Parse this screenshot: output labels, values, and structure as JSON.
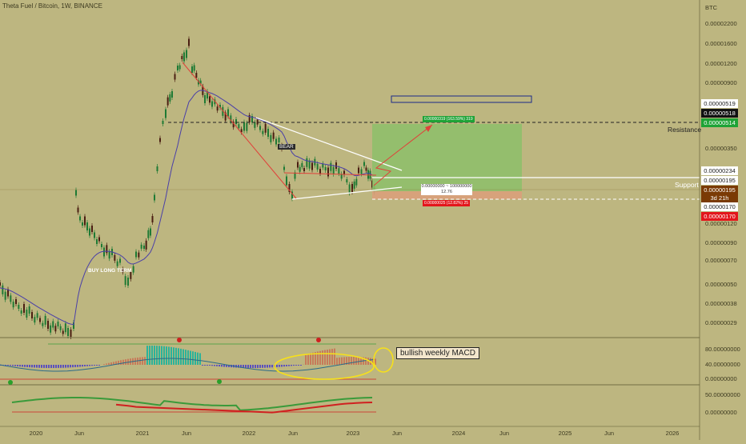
{
  "header": {
    "title": "Theta Fuel / Bitcoin, 1W, BINANCE",
    "currency": "BTC"
  },
  "price_axis": {
    "ticks": [
      "0.00002200",
      "0.00001600",
      "0.00001200",
      "0.00000900",
      "0.00000350",
      "0.00000170",
      "0.00000120",
      "0.00000090",
      "0.00000070",
      "0.00000050",
      "0.00000038",
      "0.00000029"
    ],
    "highlights": [
      {
        "text": "0.00000519",
        "bg": "#ffffff",
        "fg": "#222222"
      },
      {
        "text": "0.00000518",
        "bg": "#111111",
        "fg": "#ffffff"
      },
      {
        "text": "0.00000514",
        "bg": "#1ea336",
        "fg": "#ffffff"
      },
      {
        "text": "0.00000234",
        "bg": "#ffffff",
        "fg": "#222222"
      },
      {
        "text": "0.00000195",
        "bg": "#ffffff",
        "fg": "#222222"
      },
      {
        "text": "0.00000195",
        "bg": "#7a3a05",
        "fg": "#ffffff"
      },
      {
        "text": "3d 21h",
        "bg": "#7a3a05",
        "fg": "#ffffff"
      },
      {
        "text": "0.00000170",
        "bg": "#ffffff",
        "fg": "#222222"
      },
      {
        "text": "0.00000170",
        "bg": "#e3161c",
        "fg": "#ffffff"
      }
    ]
  },
  "indicator_axis": {
    "macd_ticks": [
      "80.00000000",
      "40.00000000",
      "0.00000000"
    ],
    "osc_ticks": [
      "50.00000000",
      "0.00000000"
    ]
  },
  "time_axis": [
    "2020",
    "Jun",
    "2021",
    "Jun",
    "2022",
    "Jun",
    "2023",
    "Jun",
    "2024",
    "Jun",
    "2025",
    "Jun",
    "2026"
  ],
  "annotations": {
    "resistance": "Resistance",
    "support": "Support",
    "buy_long": "BUY LONG TERM",
    "bear": "BEAR",
    "macd_note": "bullish weekly MACD",
    "position_mid": "0.00000000 ~ 100000000",
    "position_ratio": "12.76",
    "target_label": "0.00000319 (163.59%) 319",
    "stop_label": "0.00000025 (12.82%) 25"
  },
  "colors": {
    "background": "#bdb680",
    "profit_zone": "#8dbf6a",
    "loss_zone": "#d9a07a",
    "ema": "#4a3fa8",
    "trend": "#e0413a"
  }
}
